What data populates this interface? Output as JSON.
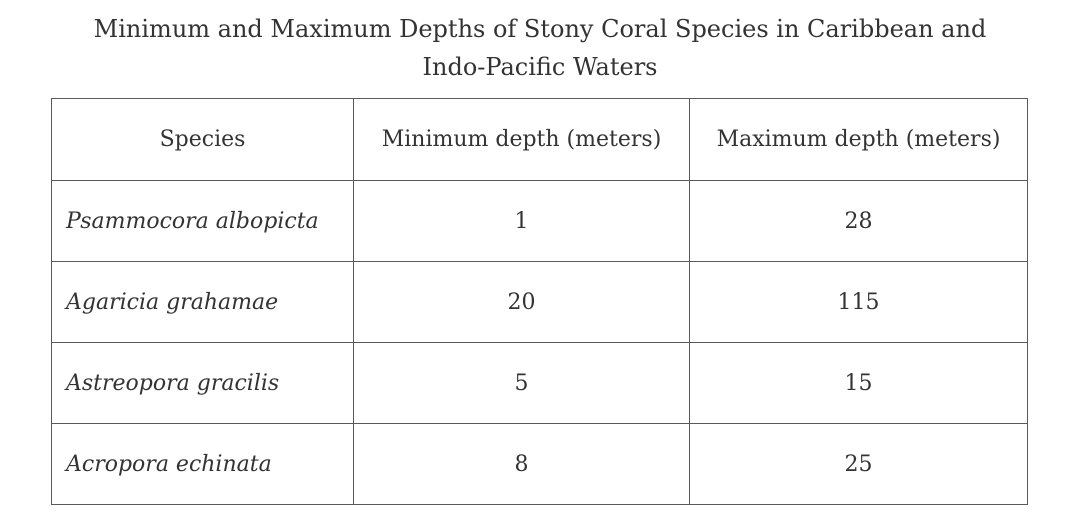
{
  "title": {
    "line1": "Minimum and Maximum Depths of Stony Coral Species in Caribbean and",
    "line2": "Indo-Pacific Waters"
  },
  "table": {
    "headers": [
      "Species",
      "Minimum depth (meters)",
      "Maximum depth (meters)"
    ],
    "rows": [
      {
        "species": "Psammocora albopicta",
        "min": "1",
        "max": "28"
      },
      {
        "species": "Agaricia grahamae",
        "min": "20",
        "max": "115"
      },
      {
        "species": "Astreopora gracilis",
        "min": "5",
        "max": "15"
      },
      {
        "species": "Acropora echinata",
        "min": "8",
        "max": "25"
      }
    ]
  }
}
